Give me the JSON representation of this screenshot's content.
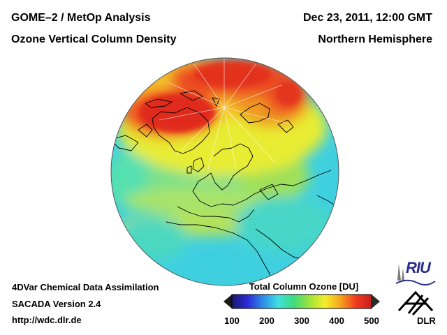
{
  "header": {
    "title_left": "GOME–2 / MetOp Analysis",
    "subtitle_left": "Ozone Vertical Column Density",
    "date_right": "Dec 23, 2011, 12:00 GMT",
    "region_right": "Northern Hemisphere"
  },
  "footer": {
    "method": "4DVar Chemical Data Assimilation",
    "version": "SACADA Version 2.4",
    "url": "http://wdc.dlr.de"
  },
  "colorbar": {
    "title": "Total Column Ozone [DU]",
    "min": 100,
    "max": 500,
    "ticks": [
      {
        "value": 100,
        "label": "100"
      },
      {
        "value": 200,
        "label": "200"
      },
      {
        "value": 300,
        "label": "300"
      },
      {
        "value": 400,
        "label": "400"
      },
      {
        "value": 500,
        "label": "500"
      }
    ],
    "gradient_colors": [
      "#1a1a6e",
      "#2b2bd6",
      "#2e8de8",
      "#3fe0e0",
      "#3fdc7a",
      "#9ee43a",
      "#f2ee2a",
      "#f7a21c",
      "#ef3a20",
      "#c81e1e"
    ],
    "under_color": "#1a1a1a",
    "over_color": "#2a2a2a"
  },
  "map": {
    "projection": "orthographic",
    "hemisphere": "Northern",
    "background_color": "#3fd0e0",
    "high_ozone_color": "#ec3a24",
    "coastline_color": "#000000"
  },
  "logos": {
    "riu_text": "RIU",
    "dlr_text": "DLR"
  }
}
